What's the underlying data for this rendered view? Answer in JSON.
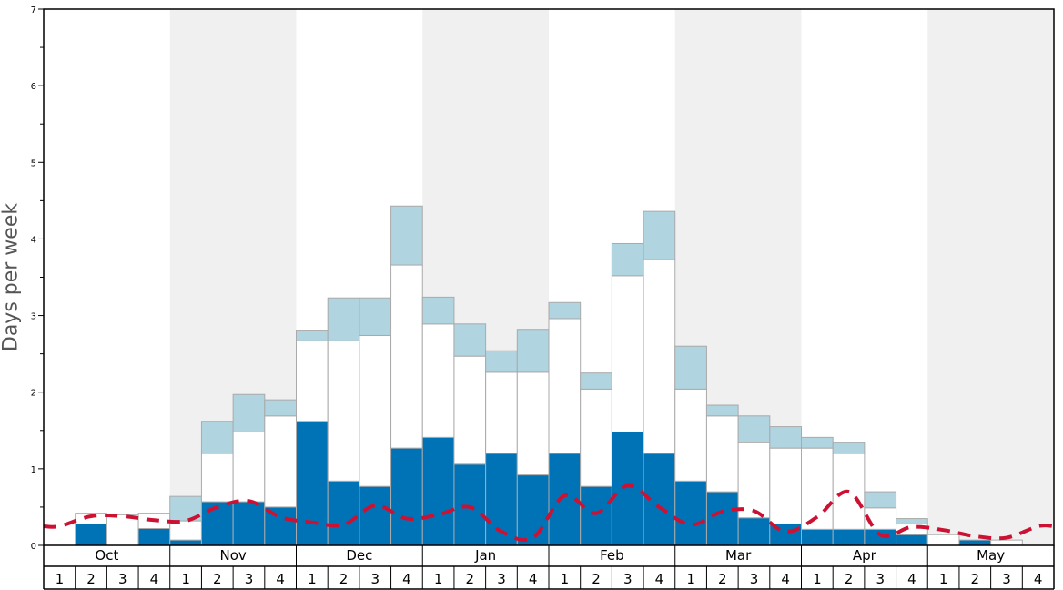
{
  "chart_data": {
    "type": "bar",
    "ylabel": "Days per week",
    "ylim": [
      0,
      7
    ],
    "yticks": [
      "0",
      "1",
      "2",
      "3",
      "4",
      "5",
      "6",
      "7"
    ],
    "months": [
      "Oct",
      "Nov",
      "Dec",
      "Jan",
      "Feb",
      "Mar",
      "Apr",
      "May"
    ],
    "weeks": [
      "1",
      "2",
      "3",
      "4"
    ],
    "shaded_months": [
      "Nov",
      "Jan",
      "Mar",
      "May"
    ],
    "grid": false,
    "legend": "none",
    "colors": {
      "dark_blue": "#0073b6",
      "white": "#ffffff",
      "light_blue": "#b0d4e0",
      "dashed_line": "#cc1133",
      "shade": "#f0f0f0",
      "bar_border": "#aaaaaa"
    },
    "series": [
      {
        "values": [
          0,
          0.28,
          0,
          0.22,
          0.07,
          0.57,
          0.57,
          0.5,
          1.62,
          0.84,
          0.77,
          1.27,
          1.41,
          1.06,
          1.2,
          0.92,
          1.2,
          0.77,
          1.48,
          1.2,
          0.84,
          0.7,
          0.36,
          0.28,
          0.21,
          0.21,
          0.21,
          0.14,
          0,
          0.07,
          0,
          0
        ]
      },
      {
        "values": [
          0,
          0.14,
          0.4,
          0.2,
          0.25,
          0.63,
          0.91,
          1.19,
          1.05,
          1.83,
          1.97,
          2.39,
          1.48,
          1.41,
          1.06,
          1.34,
          1.76,
          1.27,
          2.04,
          2.53,
          1.2,
          0.99,
          0.98,
          0.99,
          1.06,
          0.99,
          0.28,
          0.14,
          0.14,
          0,
          0.07,
          0
        ]
      },
      {
        "values": [
          0,
          0,
          0,
          0,
          0.32,
          0.42,
          0.49,
          0.21,
          0.14,
          0.56,
          0.49,
          0.77,
          0.35,
          0.42,
          0.28,
          0.56,
          0.21,
          0.21,
          0.42,
          0.63,
          0.56,
          0.14,
          0.35,
          0.28,
          0.14,
          0.14,
          0.21,
          0.07,
          0,
          0,
          0,
          0
        ]
      },
      {
        "type": "line",
        "values": [
          0.25,
          0.38,
          0.38,
          0.33,
          0.32,
          0.5,
          0.58,
          0.37,
          0.3,
          0.27,
          0.52,
          0.35,
          0.4,
          0.5,
          0.18,
          0.1,
          0.65,
          0.42,
          0.78,
          0.5,
          0.27,
          0.44,
          0.45,
          0.18,
          0.37,
          0.7,
          0.14,
          0.24,
          0.2,
          0.12,
          0.1,
          0.25
        ]
      }
    ]
  }
}
